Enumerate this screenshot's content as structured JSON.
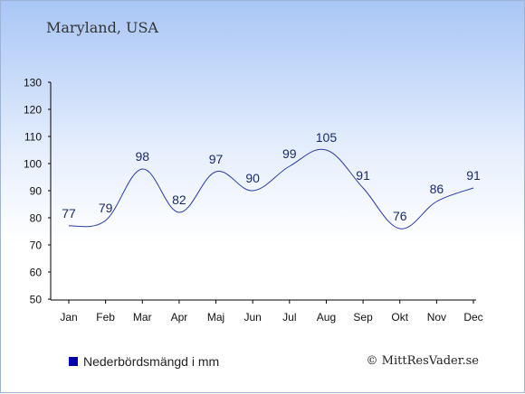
{
  "location_title": "Maryland, USA",
  "credit": "© MittResVader.se",
  "colors": {
    "line": "#2a3aa6",
    "axis": "#000000",
    "swatch": "#0000aa"
  },
  "chart_data": {
    "type": "line",
    "categories": [
      "Jan",
      "Feb",
      "Mar",
      "Apr",
      "Maj",
      "Jun",
      "Jul",
      "Aug",
      "Sep",
      "Okt",
      "Nov",
      "Dec"
    ],
    "values": [
      77,
      79,
      98,
      82,
      97,
      90,
      99,
      105,
      91,
      76,
      86,
      91
    ],
    "data_labels": [
      "77",
      "79",
      "98",
      "82",
      "97",
      "90",
      "99",
      "105",
      "91",
      "76",
      "86",
      "91"
    ],
    "series": [
      {
        "name": "Nederbördsmängd i mm",
        "values": [
          77,
          79,
          98,
          82,
          97,
          90,
          99,
          105,
          91,
          76,
          86,
          91
        ]
      }
    ],
    "yticks": [
      "50",
      "60",
      "70",
      "80",
      "90",
      "100",
      "110",
      "120",
      "130"
    ],
    "ylim": [
      50,
      130
    ],
    "grid": false,
    "legend": "bottom-left"
  }
}
